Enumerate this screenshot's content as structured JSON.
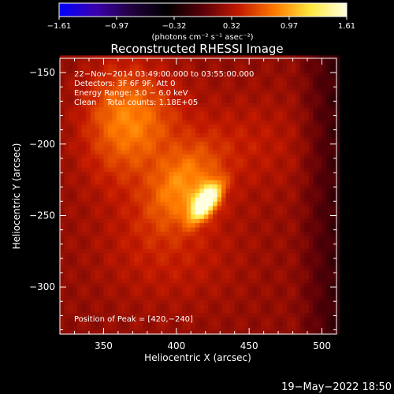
{
  "chart_data": {
    "type": "heatmap",
    "title": "Reconstructed RHESSI Image",
    "xlabel": "Heliocentric X (arcsec)",
    "ylabel": "Heliocentric Y (arcsec)",
    "xlim": [
      320,
      510
    ],
    "ylim": [
      -333,
      -140
    ],
    "xticks": [
      350,
      400,
      450,
      500
    ],
    "yticks": [
      -150,
      -200,
      -250,
      -300
    ],
    "colorbar": {
      "ticks": [
        "−1.61",
        "−0.97",
        "−0.32",
        "0.32",
        "0.97",
        "1.61"
      ],
      "range": [
        -1.61,
        1.61
      ],
      "units": "(photons cm⁻² s⁻¹ asec⁻²)",
      "colormap": [
        "#0000ff",
        "#3a00b0",
        "#220040",
        "#000000",
        "#5a0008",
        "#c41a00",
        "#ff7a00",
        "#ffe840",
        "#ffffe0"
      ]
    },
    "annotations": [
      "22−Nov−2014 03:49:00.000 to 03:55:00.000",
      "Detectors: 3F 6F 9F, Att 0",
      "Energy Range: 3.0 − 6.0 keV",
      "Clean    Total counts: 1.18E+05"
    ],
    "peak_label": "Position of Peak = [420,−240]",
    "peak": {
      "x": 420,
      "y": -240
    },
    "peak_value": 1.61,
    "sources": [
      {
        "x": 420,
        "y": -240,
        "sx": 5,
        "sy": 10,
        "angle": -35,
        "amp": 1.61
      },
      {
        "x": 405,
        "y": -228,
        "sx": 14,
        "sy": 22,
        "angle": -35,
        "amp": 0.55
      },
      {
        "x": 372,
        "y": -192,
        "sx": 22,
        "sy": 28,
        "angle": -30,
        "amp": 0.45
      },
      {
        "x": 360,
        "y": -170,
        "sx": 18,
        "sy": 22,
        "angle": 0,
        "amp": 0.3
      },
      {
        "x": 395,
        "y": -272,
        "sx": 35,
        "sy": 30,
        "angle": 0,
        "amp": 0.22
      },
      {
        "x": 450,
        "y": -200,
        "sx": 28,
        "sy": 25,
        "angle": 0,
        "amp": 0.18
      }
    ],
    "background": 0.2
  },
  "footer": {
    "timestamp": "19−May−2022 18:50"
  }
}
